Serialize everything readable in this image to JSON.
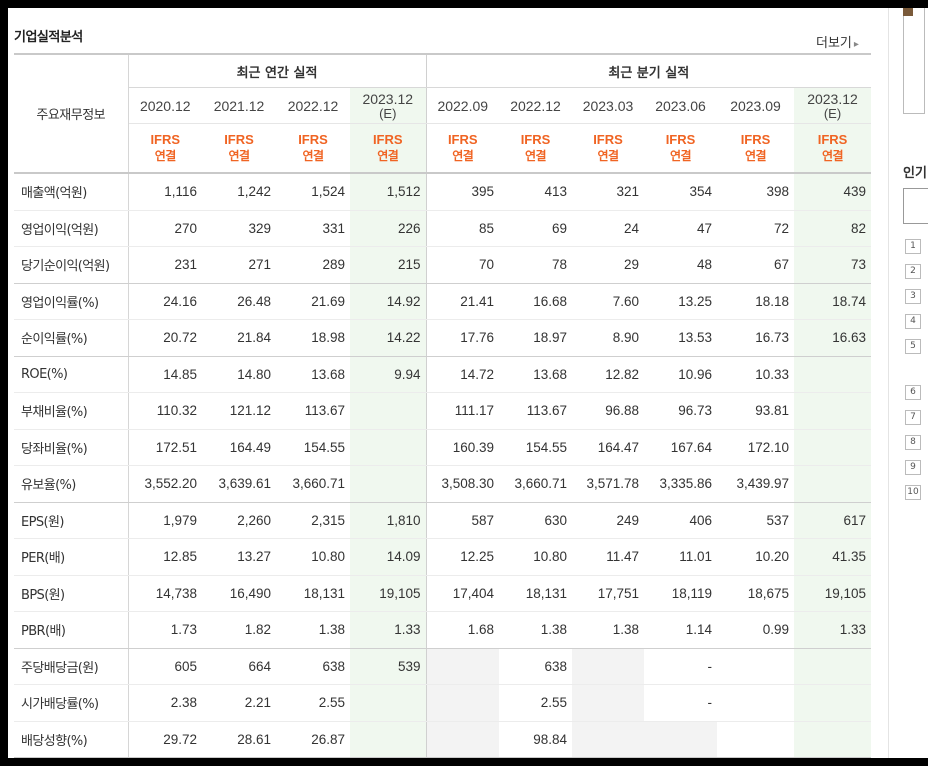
{
  "title": "기업실적분석",
  "more_label": "더보기",
  "header": {
    "corner_label": "주요재무정보",
    "annual_label": "최근 연간 실적",
    "quarter_label": "최근 분기 실적",
    "annual_periods": [
      {
        "period": "2020.12",
        "est": ""
      },
      {
        "period": "2021.12",
        "est": ""
      },
      {
        "period": "2022.12",
        "est": ""
      },
      {
        "period": "2023.12",
        "est": "(E)"
      }
    ],
    "quarter_periods": [
      {
        "period": "2022.09",
        "est": ""
      },
      {
        "period": "2022.12",
        "est": ""
      },
      {
        "period": "2023.03",
        "est": ""
      },
      {
        "period": "2023.06",
        "est": ""
      },
      {
        "period": "2023.09",
        "est": ""
      },
      {
        "period": "2023.12",
        "est": "(E)"
      }
    ],
    "standard_top": "IFRS",
    "standard_bottom": "연결"
  },
  "rows": [
    {
      "label": "매출액(억원)",
      "values": [
        "1,116",
        "1,242",
        "1,524",
        "1,512",
        "395",
        "413",
        "321",
        "354",
        "398",
        "439"
      ]
    },
    {
      "label": "영업이익(억원)",
      "values": [
        "270",
        "329",
        "331",
        "226",
        "85",
        "69",
        "24",
        "47",
        "72",
        "82"
      ]
    },
    {
      "label": "당기순이익(억원)",
      "values": [
        "231",
        "271",
        "289",
        "215",
        "70",
        "78",
        "29",
        "48",
        "67",
        "73"
      ]
    },
    {
      "label": "영업이익률(%)",
      "values": [
        "24.16",
        "26.48",
        "21.69",
        "14.92",
        "21.41",
        "16.68",
        "7.60",
        "13.25",
        "18.18",
        "18.74"
      ]
    },
    {
      "label": "순이익률(%)",
      "values": [
        "20.72",
        "21.84",
        "18.98",
        "14.22",
        "17.76",
        "18.97",
        "8.90",
        "13.53",
        "16.73",
        "16.63"
      ]
    },
    {
      "label": "ROE(%)",
      "values": [
        "14.85",
        "14.80",
        "13.68",
        "9.94",
        "14.72",
        "13.68",
        "12.82",
        "10.96",
        "10.33",
        ""
      ]
    },
    {
      "label": "부채비율(%)",
      "values": [
        "110.32",
        "121.12",
        "113.67",
        "",
        "111.17",
        "113.67",
        "96.88",
        "96.73",
        "93.81",
        ""
      ]
    },
    {
      "label": "당좌비율(%)",
      "values": [
        "172.51",
        "164.49",
        "154.55",
        "",
        "160.39",
        "154.55",
        "164.47",
        "167.64",
        "172.10",
        ""
      ]
    },
    {
      "label": "유보율(%)",
      "values": [
        "3,552.20",
        "3,639.61",
        "3,660.71",
        "",
        "3,508.30",
        "3,660.71",
        "3,571.78",
        "3,335.86",
        "3,439.97",
        ""
      ]
    },
    {
      "label": "EPS(원)",
      "values": [
        "1,979",
        "2,260",
        "2,315",
        "1,810",
        "587",
        "630",
        "249",
        "406",
        "537",
        "617"
      ]
    },
    {
      "label": "PER(배)",
      "values": [
        "12.85",
        "13.27",
        "10.80",
        "14.09",
        "12.25",
        "10.80",
        "11.47",
        "11.01",
        "10.20",
        "41.35"
      ]
    },
    {
      "label": "BPS(원)",
      "values": [
        "14,738",
        "16,490",
        "18,131",
        "19,105",
        "17,404",
        "18,131",
        "17,751",
        "18,119",
        "18,675",
        "19,105"
      ]
    },
    {
      "label": "PBR(배)",
      "values": [
        "1.73",
        "1.82",
        "1.38",
        "1.33",
        "1.68",
        "1.38",
        "1.38",
        "1.14",
        "0.99",
        "1.33"
      ]
    },
    {
      "label": "주당배당금(원)",
      "values": [
        "605",
        "664",
        "638",
        "539",
        "",
        "638",
        "",
        "-",
        "",
        ""
      ]
    },
    {
      "label": "시가배당률(%)",
      "values": [
        "2.38",
        "2.21",
        "2.55",
        "",
        "",
        "2.55",
        "",
        "-",
        "",
        ""
      ]
    },
    {
      "label": "배당성향(%)",
      "values": [
        "29.72",
        "28.61",
        "26.87",
        "",
        "",
        "98.84",
        "",
        "",
        "",
        ""
      ]
    }
  ],
  "right_panel": {
    "partial_heading": "인기",
    "rank_numbers": [
      "1",
      "2",
      "3",
      "4",
      "5",
      "6",
      "7",
      "8",
      "9",
      "10"
    ]
  }
}
